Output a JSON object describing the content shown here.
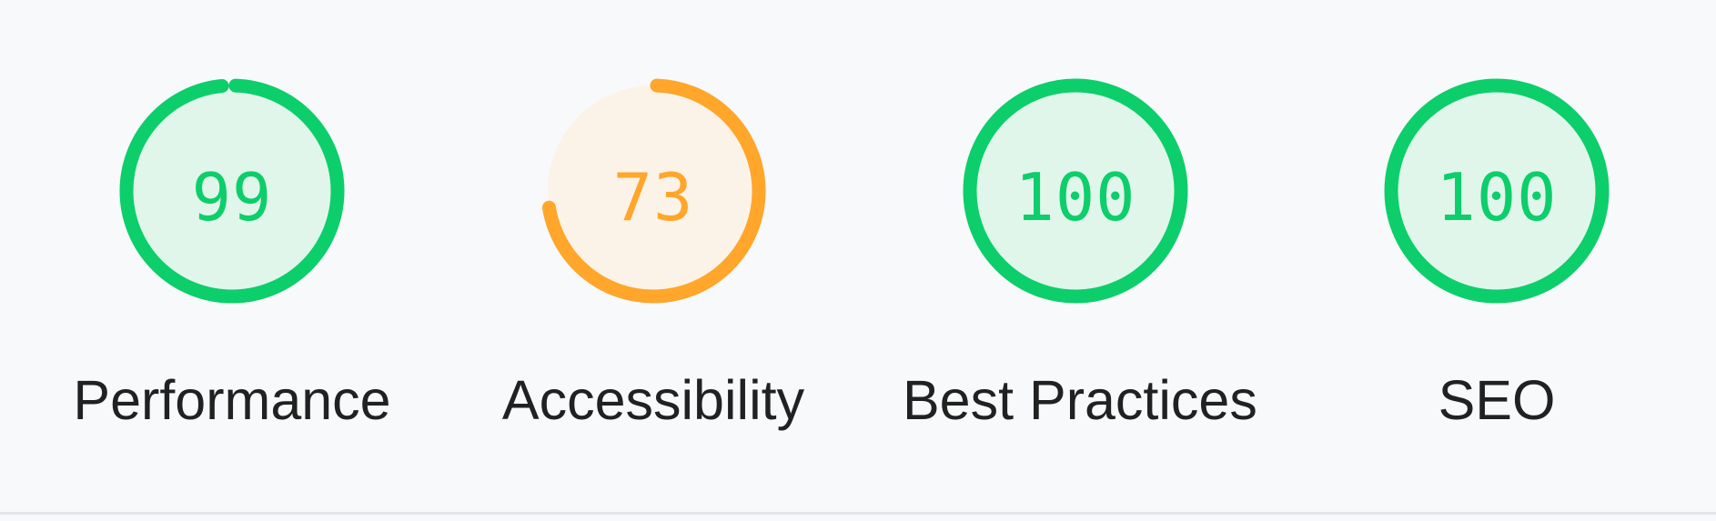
{
  "colors": {
    "pass": "#0cce6b",
    "pass_fill": "#e1f6ea",
    "average": "#ffa62b",
    "average_fill": "#fbf3e7",
    "background": "#f7f9fb",
    "label": "#212121"
  },
  "gauges": [
    {
      "id": "performance",
      "score": 99,
      "score_text": "99",
      "label": "Performance",
      "rating": "pass"
    },
    {
      "id": "accessibility",
      "score": 73,
      "score_text": "73",
      "label": "Accessibility",
      "rating": "average"
    },
    {
      "id": "best-practices",
      "score": 100,
      "score_text": "100",
      "label": "Best Practices",
      "rating": "pass"
    },
    {
      "id": "seo",
      "score": 100,
      "score_text": "100",
      "label": "SEO",
      "rating": "pass"
    }
  ]
}
